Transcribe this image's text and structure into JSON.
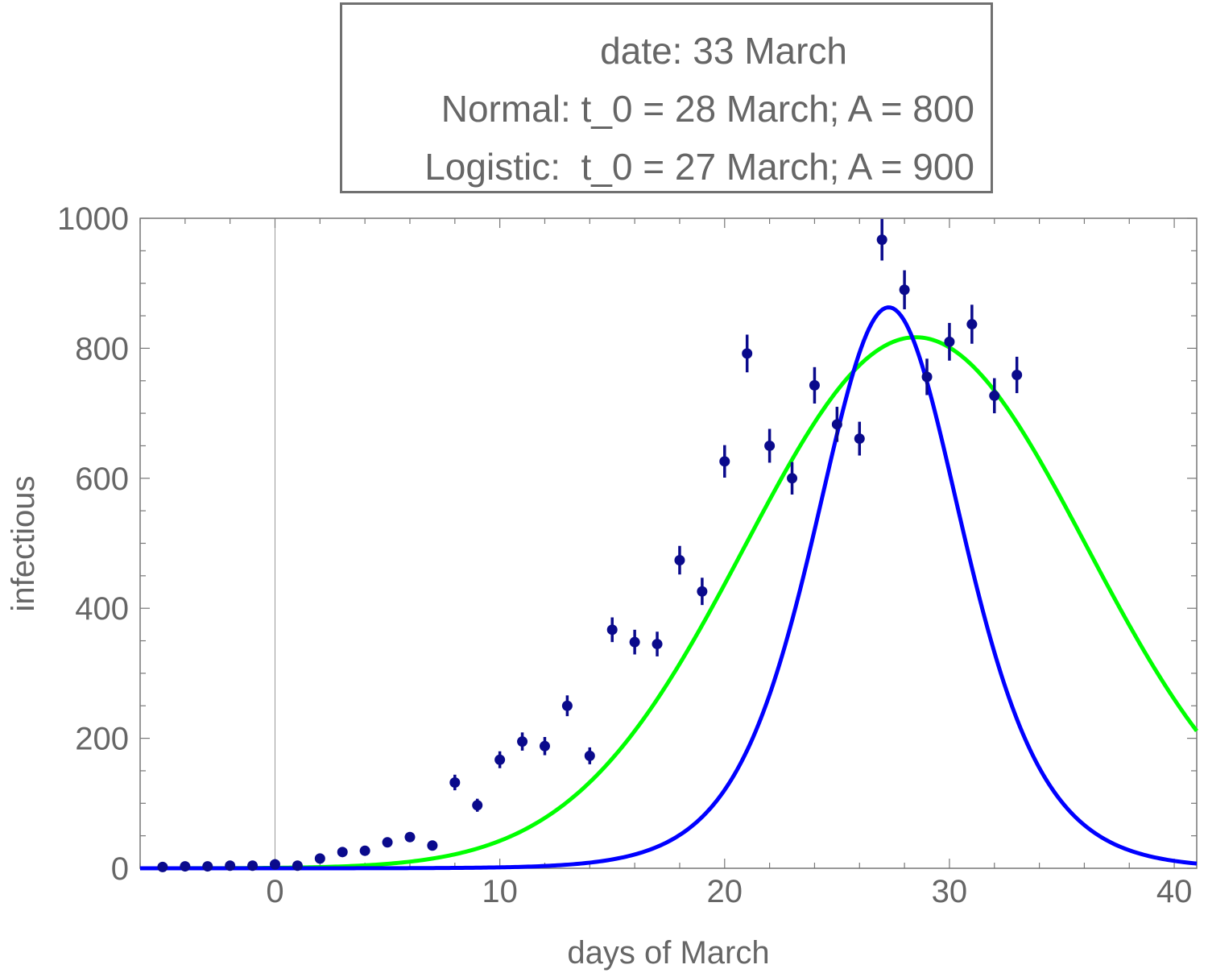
{
  "legend": {
    "line1": "date: 33 March",
    "line2": "Normal: t_0 = 28 March; A = 800",
    "line3": "Logistic:  t_0 = 27 March; A = 900"
  },
  "chart_data": {
    "type": "scatter",
    "xlabel": "days of March",
    "ylabel": "infectious",
    "xlim": [
      -6,
      41
    ],
    "ylim": [
      0,
      1000
    ],
    "x_ticks": [
      0,
      10,
      20,
      30,
      40
    ],
    "y_ticks": [
      0,
      200,
      400,
      600,
      800,
      1000
    ],
    "grid": false,
    "points": {
      "color": "#0a0a8c",
      "x": [
        -5,
        -4,
        -3,
        -2,
        -1,
        0,
        1,
        2,
        3,
        4,
        5,
        6,
        7,
        8,
        9,
        10,
        11,
        12,
        13,
        14,
        15,
        16,
        17,
        18,
        19,
        20,
        21,
        22,
        23,
        24,
        25,
        26,
        27,
        28,
        29,
        30,
        31,
        32,
        33
      ],
      "y": [
        2,
        3,
        3,
        4,
        4,
        6,
        4,
        15,
        25,
        27,
        40,
        48,
        35,
        132,
        97,
        167,
        195,
        188,
        250,
        173,
        367,
        348,
        345,
        474,
        426,
        626,
        792,
        650,
        600,
        743,
        683,
        661,
        967,
        890,
        756,
        810,
        837,
        727,
        759
      ],
      "err": [
        1,
        1,
        1,
        2,
        2,
        3,
        2,
        4,
        5,
        5,
        6,
        7,
        6,
        12,
        10,
        13,
        14,
        14,
        16,
        13,
        19,
        19,
        19,
        22,
        21,
        25,
        29,
        26,
        25,
        28,
        27,
        26,
        32,
        30,
        28,
        29,
        30,
        27,
        28
      ]
    },
    "series": [
      {
        "name": "Logistic",
        "color": "#0000ff",
        "model": "logistic",
        "t0": 27.3,
        "A": 863,
        "w": 4.45
      },
      {
        "name": "Normal",
        "color": "#00ff00",
        "model": "normal",
        "t0": 28.5,
        "A": 817,
        "s": 7.6
      }
    ]
  }
}
